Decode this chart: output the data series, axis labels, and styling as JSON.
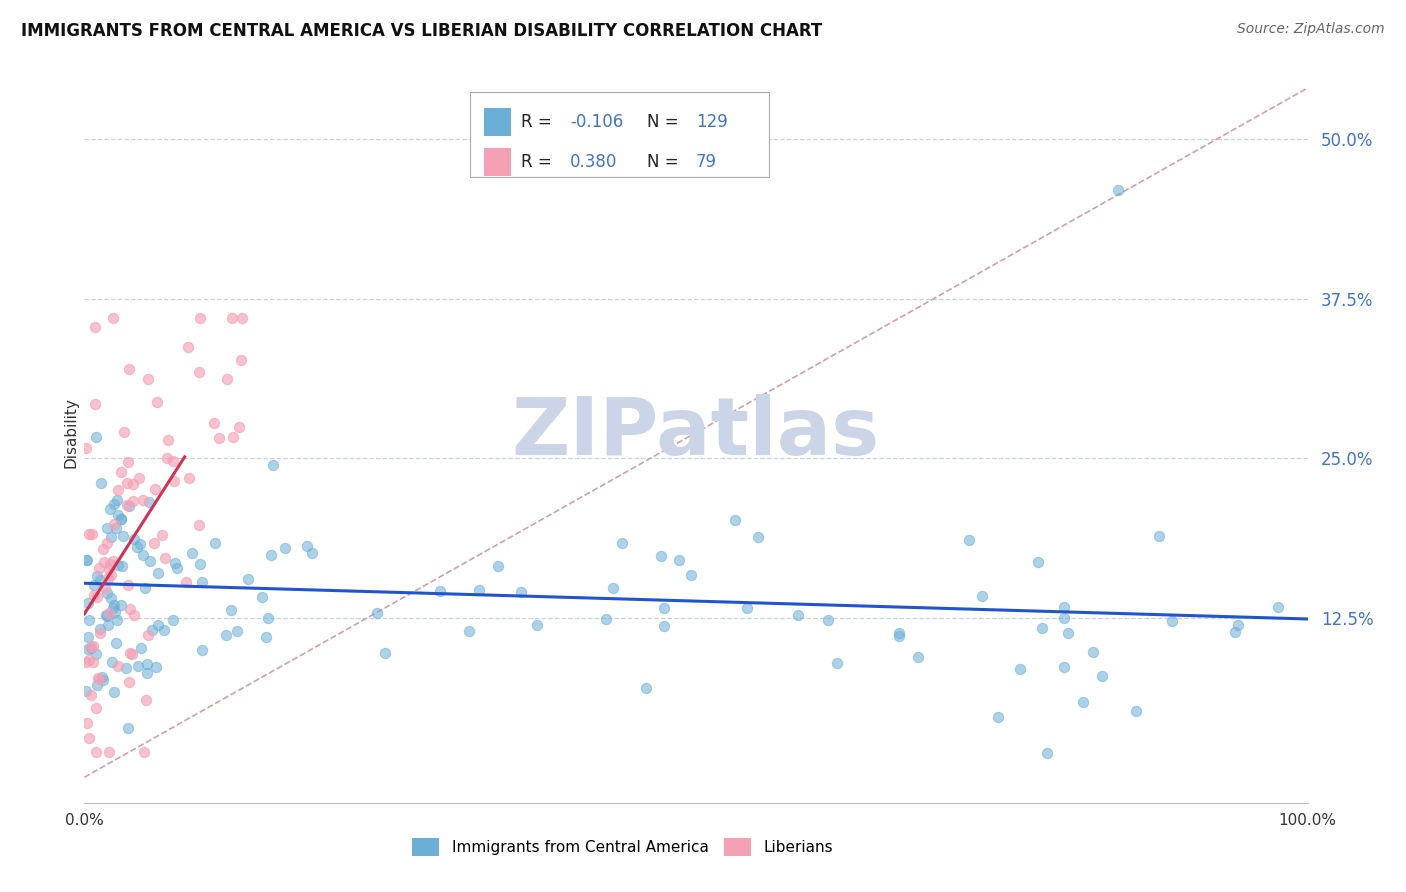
{
  "title": "IMMIGRANTS FROM CENTRAL AMERICA VS LIBERIAN DISABILITY CORRELATION CHART",
  "source": "Source: ZipAtlas.com",
  "ylabel": "Disability",
  "xlim": [
    0.0,
    1.0
  ],
  "ylim": [
    -0.02,
    0.56
  ],
  "yticks": [
    0.125,
    0.25,
    0.375,
    0.5
  ],
  "ytick_labels": [
    "12.5%",
    "25.0%",
    "37.5%",
    "50.0%"
  ],
  "xticks": [
    0.0,
    1.0
  ],
  "xtick_labels": [
    "0.0%",
    "100.0%"
  ],
  "blue_R": -0.106,
  "blue_N": 129,
  "pink_R": 0.38,
  "pink_N": 79,
  "blue_color": "#6baed6",
  "pink_color": "#f4a0b5",
  "blue_marker_alpha": 0.55,
  "pink_marker_alpha": 0.65,
  "blue_line_color": "#2255cc",
  "pink_line_color": "#cc3355",
  "diag_line_color": "#d0a0a8",
  "watermark": "ZIPatlas",
  "watermark_color": "#ccd5e8",
  "background_color": "#ffffff",
  "grid_color": "#c8d0dc",
  "legend_blue_label": "Immigrants from Central America",
  "legend_pink_label": "Liberians",
  "title_fontsize": 12,
  "source_fontsize": 10,
  "seed": 7,
  "marker_size": 55
}
